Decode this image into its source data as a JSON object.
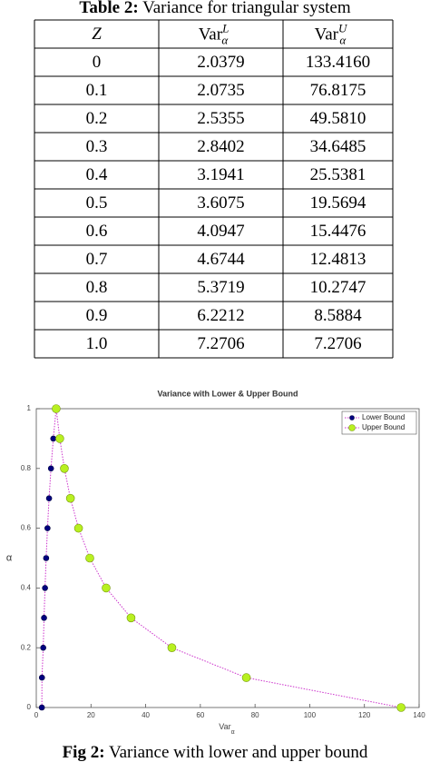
{
  "caption": {
    "label": "Table 2:",
    "text": "Variance for triangular system"
  },
  "table": {
    "header": [
      "Z",
      {
        "text": "Var",
        "sub": "α",
        "sup": "L"
      },
      {
        "text": "Var",
        "sub": "α",
        "sup": "U"
      }
    ],
    "rows": [
      [
        "0",
        "2.0379",
        "133.4160"
      ],
      [
        "0.1",
        "2.0735",
        "76.8175"
      ],
      [
        "0.2",
        "2.5355",
        "49.5810"
      ],
      [
        "0.3",
        "2.8402",
        "34.6485"
      ],
      [
        "0.4",
        "3.1941",
        "25.5381"
      ],
      [
        "0.5",
        "3.6075",
        "19.5694"
      ],
      [
        "0.6",
        "4.0947",
        "15.4476"
      ],
      [
        "0.7",
        "4.6744",
        "12.4813"
      ],
      [
        "0.8",
        "5.3719",
        "10.2747"
      ],
      [
        "0.9",
        "6.2212",
        "8.5884"
      ],
      [
        "1.0",
        "7.2706",
        "7.2706"
      ]
    ]
  },
  "chart_data": {
    "type": "line",
    "title": "Variance with Lower & Upper Bound",
    "x_label": {
      "text": "Var",
      "sub": "α"
    },
    "y_label": "α",
    "xlim": [
      0,
      140
    ],
    "xticks": [
      0,
      20,
      40,
      60,
      80,
      100,
      120,
      140
    ],
    "ylim": [
      0,
      1
    ],
    "yticks": [
      0,
      0.2,
      0.4,
      0.6,
      0.8,
      1
    ],
    "line_color": "#cc33cc",
    "legend": "upper right",
    "series": [
      {
        "name": "Lower Bound",
        "color": "#000080",
        "x": [
          2.0379,
          2.0735,
          2.5355,
          2.8402,
          3.1941,
          3.6075,
          4.0947,
          4.6744,
          5.3719,
          6.2212,
          7.2706
        ],
        "values": [
          0,
          0.1,
          0.2,
          0.3,
          0.4,
          0.5,
          0.6,
          0.7,
          0.8,
          0.9,
          1
        ]
      },
      {
        "name": "Upper Bound",
        "color": "#b8f020",
        "x": [
          133.416,
          76.8175,
          49.581,
          34.6485,
          25.5381,
          19.5694,
          15.4476,
          12.4813,
          10.2747,
          8.5884,
          7.2706
        ],
        "values": [
          0,
          0.1,
          0.2,
          0.3,
          0.4,
          0.5,
          0.6,
          0.7,
          0.8,
          0.9,
          1
        ]
      }
    ]
  },
  "figure_caption": {
    "label": "Fig 2:",
    "text": "Variance with lower and upper bound"
  }
}
